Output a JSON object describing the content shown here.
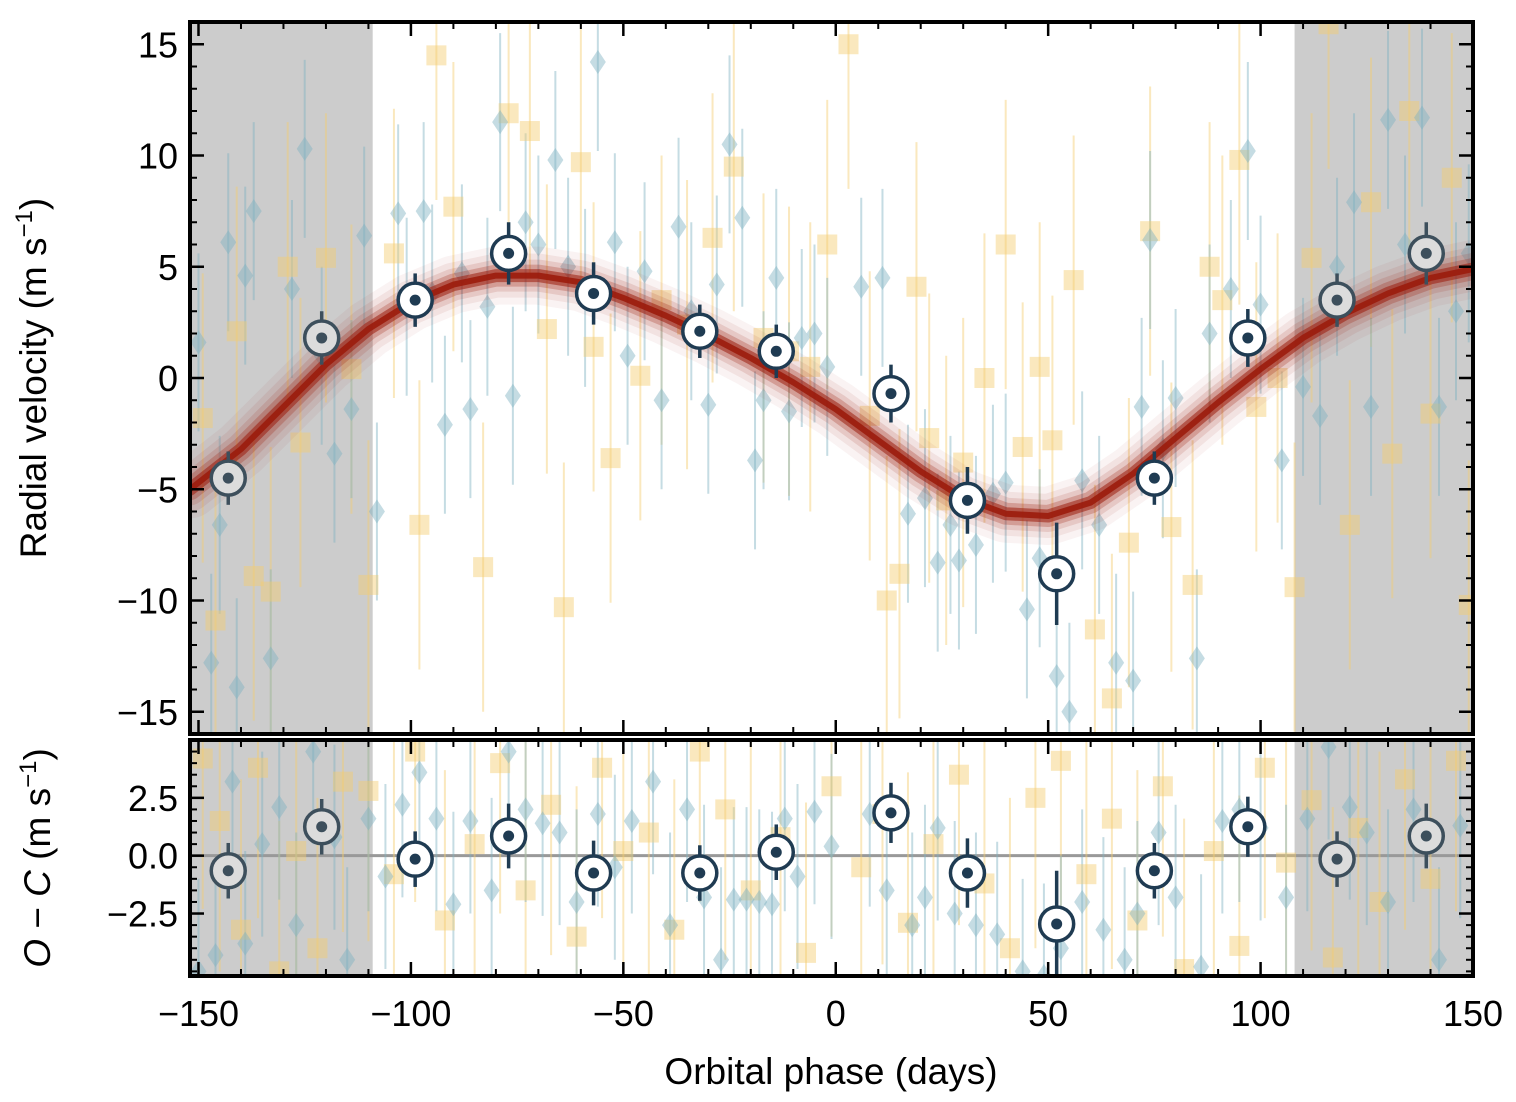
{
  "chart_data": [
    {
      "type": "scatter",
      "panel": "top",
      "xlabel": "Orbital phase (days)",
      "ylabel_text": "Radial velocity (m s",
      "ylabel_sup": "−1",
      "ylabel_close": ")",
      "xlim": [
        -152,
        150
      ],
      "ylim": [
        -16,
        16
      ],
      "xticks": [
        -150,
        -100,
        -50,
        0,
        50,
        100,
        150
      ],
      "xtick_labels": [
        "−150",
        "−100",
        "−50",
        "0",
        "50",
        "100",
        "150"
      ],
      "yticks": [
        -15,
        -10,
        -5,
        0,
        5,
        10,
        15
      ],
      "ytick_labels": [
        "−15",
        "−10",
        "−5",
        "0",
        "5",
        "10",
        "15"
      ],
      "shaded_x_ranges": [
        [
          -152,
          -109
        ],
        [
          108,
          150
        ]
      ],
      "model_curve": {
        "color": "#9b1c0c",
        "x": [
          -152,
          -140,
          -130,
          -120,
          -110,
          -100,
          -90,
          -80,
          -70,
          -60,
          -50,
          -40,
          -30,
          -20,
          -10,
          0,
          10,
          20,
          30,
          40,
          50,
          60,
          70,
          80,
          90,
          100,
          110,
          120,
          130,
          140,
          150
        ],
        "y": [
          -5.0,
          -3.2,
          -1.3,
          0.6,
          2.2,
          3.4,
          4.2,
          4.6,
          4.6,
          4.3,
          3.6,
          2.8,
          1.9,
          0.9,
          -0.2,
          -1.4,
          -2.8,
          -4.2,
          -5.4,
          -6.1,
          -6.2,
          -5.6,
          -4.3,
          -2.7,
          -1.1,
          0.4,
          1.8,
          2.9,
          3.8,
          4.5,
          4.9
        ]
      },
      "binned_points": {
        "x": [
          -143,
          -121,
          -99,
          -77,
          -57,
          -32,
          -14,
          13,
          31,
          52,
          75,
          97,
          118,
          139
        ],
        "y": [
          -4.5,
          1.8,
          3.5,
          5.6,
          3.8,
          2.1,
          1.2,
          -0.7,
          -5.5,
          -8.8,
          -4.5,
          1.8,
          3.5,
          5.6
        ],
        "err": [
          1.2,
          1.2,
          1.2,
          1.4,
          1.4,
          1.2,
          1.2,
          1.3,
          1.5,
          2.3,
          1.2,
          1.3,
          1.2,
          1.4
        ],
        "duplicate_in_shaded": [
          true,
          true,
          false,
          false,
          false,
          false,
          false,
          false,
          false,
          false,
          false,
          false,
          true,
          true
        ]
      },
      "diamond_points": {
        "color": "#7fb2c0",
        "x": [
          -150,
          -147,
          -145,
          -143,
          -141,
          -139,
          -137,
          -133,
          -128,
          -125,
          -121,
          -118,
          -114,
          -111,
          -108,
          -103,
          -101,
          -97,
          -95,
          -92,
          -88,
          -86,
          -82,
          -79,
          -76,
          -73,
          -70,
          -66,
          -63,
          -59,
          -56,
          -52,
          -49,
          -45,
          -41,
          -37,
          -34,
          -30,
          -28,
          -25,
          -22,
          -19,
          -17,
          -14,
          -11,
          -8,
          -5,
          -2,
          6,
          11,
          17,
          21,
          24,
          27,
          29,
          33,
          37,
          40,
          45,
          48,
          52,
          55,
          58,
          62,
          66,
          70,
          72,
          74,
          77,
          80,
          85,
          88,
          93,
          97,
          100,
          105,
          110,
          114,
          118,
          122,
          126,
          130,
          134,
          138,
          142,
          146,
          149
        ],
        "y": [
          1.6,
          -12.8,
          -6.6,
          6.1,
          -13.9,
          4.6,
          7.5,
          -12.6,
          4.0,
          10.3,
          1.0,
          -3.4,
          -1.4,
          6.4,
          -6.0,
          7.4,
          3.2,
          7.5,
          3.8,
          -2.1,
          4.7,
          -1.4,
          3.2,
          11.5,
          -0.8,
          7.0,
          6.0,
          9.8,
          5.0,
          3.6,
          14.2,
          6.1,
          1.0,
          4.8,
          -1.0,
          6.8,
          3.0,
          -1.2,
          4.2,
          10.5,
          7.2,
          -3.7,
          -1.0,
          4.5,
          -1.5,
          1.8,
          2.0,
          0.5,
          4.1,
          4.5,
          -6.1,
          -5.4,
          -8.3,
          -6.6,
          -8.2,
          -7.5,
          -5.2,
          -4.7,
          -10.4,
          -8.1,
          -13.4,
          -15.0,
          -4.6,
          -6.6,
          -12.8,
          -13.6,
          -1.3,
          6.2,
          -3.2,
          -0.9,
          -12.6,
          2.0,
          4.0,
          10.2,
          3.3,
          -3.7,
          -0.4,
          -1.7,
          5.0,
          7.9,
          -1.3,
          11.6,
          6.0,
          11.7,
          -1.3,
          3.0,
          5.6
        ],
        "err": 4.0
      },
      "square_points": {
        "color": "#f5cd6f",
        "x": [
          -149,
          -146,
          -141,
          -137,
          -133,
          -129,
          -126,
          -120,
          -114,
          -110,
          -104,
          -98,
          -94,
          -90,
          -83,
          -77,
          -72,
          -68,
          -64,
          -60,
          -57,
          -53,
          -46,
          -41,
          -35,
          -29,
          -24,
          -17,
          -11,
          -6,
          -2,
          3,
          8,
          12,
          15,
          19,
          22,
          26,
          30,
          35,
          40,
          44,
          48,
          51,
          56,
          61,
          65,
          69,
          74,
          79,
          84,
          88,
          91,
          95,
          99,
          104,
          108,
          112,
          116,
          121,
          126,
          131,
          135,
          140,
          145,
          149
        ],
        "y": [
          -1.8,
          -10.9,
          2.1,
          -8.9,
          -9.6,
          5.0,
          -2.9,
          5.4,
          0.4,
          -9.3,
          5.6,
          -6.6,
          14.5,
          7.7,
          -8.5,
          11.9,
          11.1,
          2.2,
          -10.3,
          9.7,
          1.4,
          -3.6,
          0.1,
          3.5,
          2.4,
          6.3,
          9.5,
          1.8,
          1.2,
          0.5,
          6.0,
          15.0,
          -1.7,
          -10.0,
          -8.8,
          4.1,
          -2.7,
          -5.5,
          -3.8,
          0.0,
          6.0,
          -3.1,
          0.5,
          -2.8,
          4.4,
          -11.3,
          -14.4,
          -7.4,
          6.6,
          -6.7,
          -9.3,
          5.0,
          3.5,
          9.8,
          -1.3,
          0.0,
          -9.4,
          5.4,
          15.9,
          -6.6,
          7.9,
          -3.4,
          12.0,
          -1.6,
          9.0,
          -10.2
        ],
        "err": 6.5
      }
    },
    {
      "type": "scatter",
      "panel": "bottom",
      "ylabel_italic_O": "O",
      "ylabel_minus": " − ",
      "ylabel_italic_C": "C",
      "ylabel_text": " (m s",
      "ylabel_sup": "−1",
      "ylabel_close": ")",
      "xlim": [
        -152,
        150
      ],
      "ylim": [
        -5.2,
        5.0
      ],
      "yticks": [
        -2.5,
        0.0,
        2.5
      ],
      "ytick_labels": [
        "−2.5",
        "0.0",
        "2.5"
      ],
      "zero_line_color": "#999999",
      "binned_points": {
        "x": [
          -143,
          -121,
          -99,
          -77,
          -57,
          -32,
          -14,
          13,
          31,
          52,
          75,
          97,
          118,
          139
        ],
        "y": [
          -0.65,
          1.25,
          -0.15,
          0.85,
          -0.75,
          -0.75,
          0.15,
          1.85,
          -0.75,
          -2.95,
          -0.65,
          1.25,
          -0.15,
          0.85
        ],
        "err": [
          1.2,
          1.2,
          1.2,
          1.4,
          1.4,
          1.2,
          1.2,
          1.3,
          1.5,
          2.3,
          1.2,
          1.3,
          1.2,
          1.4
        ],
        "duplicate_in_shaded": [
          true,
          true,
          false,
          false,
          false,
          false,
          false,
          false,
          false,
          false,
          false,
          false,
          true,
          true
        ]
      },
      "diamond_points": {
        "color": "#7fb2c0",
        "x": [
          -150,
          -146,
          -142,
          -139,
          -135,
          -131,
          -127,
          -123,
          -118,
          -115,
          -110,
          -106,
          -102,
          -98,
          -94,
          -90,
          -86,
          -81,
          -77,
          -73,
          -69,
          -65,
          -61,
          -56,
          -52,
          -48,
          -43,
          -39,
          -35,
          -31,
          -27,
          -24,
          -21,
          -18,
          -15,
          -12,
          -9,
          -5,
          -1,
          8,
          12,
          18,
          21,
          24,
          28,
          33,
          38,
          44,
          49,
          53,
          58,
          63,
          68,
          71,
          76,
          80,
          86,
          91,
          95,
          100,
          106,
          111,
          116,
          121,
          125,
          130,
          136,
          142,
          147
        ],
        "y": [
          -5.0,
          -4.3,
          3.2,
          -3.8,
          0.5,
          2.1,
          -3.0,
          4.5,
          0.8,
          -4.5,
          1.6,
          -0.9,
          2.2,
          3.6,
          1.6,
          -2.1,
          1.5,
          -1.5,
          4.5,
          2.0,
          1.4,
          1.0,
          -2.0,
          1.8,
          -0.5,
          1.5,
          3.2,
          -3.0,
          2.0,
          -1.8,
          -4.5,
          -1.9,
          -1.9,
          -2.0,
          -2.1,
          1.6,
          -0.9,
          1.9,
          0.4,
          1.8,
          -1.5,
          -3.0,
          -1.8,
          1.2,
          -2.5,
          -3.0,
          -3.4,
          -5.0,
          -5.2,
          -4.0,
          -2.0,
          -3.2,
          -4.5,
          -2.5,
          1.0,
          -1.8,
          -4.8,
          1.5,
          2.0,
          1.2,
          -1.8,
          1.6,
          4.7,
          2.1,
          1.0,
          -2.0,
          2.0,
          -4.5,
          1.3
        ],
        "err": 4.0
      },
      "square_points": {
        "color": "#f5cd6f",
        "x": [
          -149,
          -145,
          -140,
          -136,
          -131,
          -127,
          -122,
          -116,
          -110,
          -104,
          -99,
          -92,
          -85,
          -79,
          -73,
          -67,
          -61,
          -55,
          -50,
          -44,
          -38,
          -32,
          -26,
          -20,
          -13,
          -7,
          -1,
          6,
          11,
          17,
          23,
          29,
          35,
          41,
          47,
          53,
          59,
          65,
          71,
          77,
          82,
          89,
          95,
          101,
          106,
          112,
          117,
          123,
          128,
          134,
          140,
          146
        ],
        "y": [
          4.2,
          1.5,
          -3.2,
          3.8,
          -5.0,
          0.2,
          -4.0,
          3.2,
          2.8,
          -0.8,
          4.5,
          -2.8,
          0.5,
          4.0,
          -1.5,
          2.2,
          -3.5,
          3.8,
          0.2,
          1.0,
          -3.2,
          4.5,
          2.0,
          -1.5,
          0.8,
          -4.2,
          3.0,
          -0.5,
          1.8,
          -2.9,
          0.5,
          3.5,
          -1.2,
          -4.0,
          2.5,
          4.1,
          -0.8,
          1.6,
          -2.8,
          3.0,
          -4.9,
          0.2,
          -3.9,
          3.8,
          -0.3,
          2.4,
          -4.4,
          1.2,
          -2.0,
          3.3,
          -1.0,
          4.1
        ],
        "err": 6.5
      }
    }
  ]
}
